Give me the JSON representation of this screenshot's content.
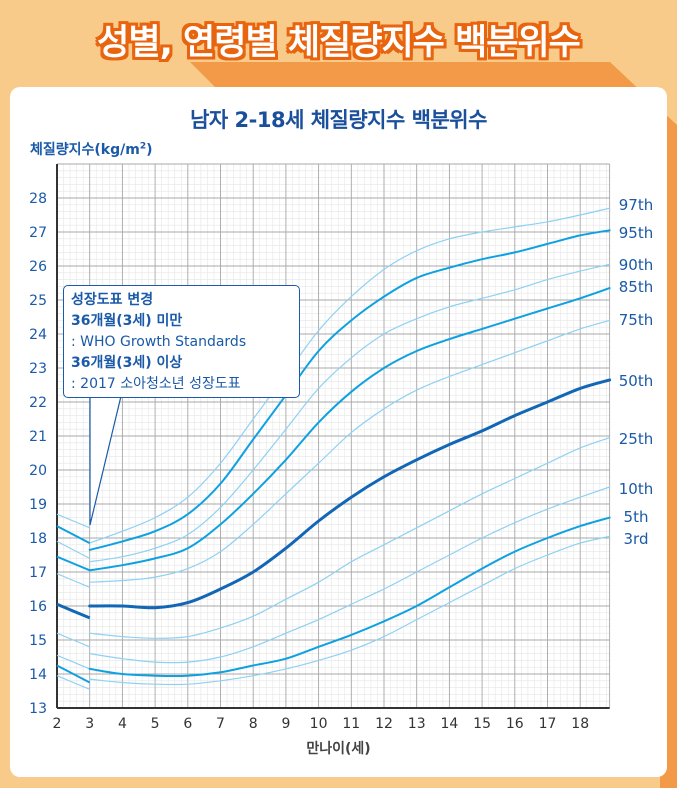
{
  "header": {
    "title": "성별, 연령별 체질량지수 백분위수"
  },
  "colors": {
    "background": "#f9cb8a",
    "band": "#f29a48",
    "light": "#8ed1f2",
    "medium": "#0ea1e2",
    "dark": "#1266b6",
    "text": "#1a5aa8"
  },
  "callout": {
    "heading": "성장도표 변경",
    "line1_bold": "36개월(3세) 미만",
    "line1": ": WHO Growth Standards",
    "line2_bold": "36개월(3세) 이상",
    "line2": ": 2017 소아청소년 성장도표"
  },
  "chart_data": {
    "type": "line",
    "title": "남자 2-18세 체질량지수 백분위수",
    "ylabel": "체질량지수(kg/m",
    "ylabel_sup": "2",
    "ylabel_close": ")",
    "xlabel": "만나이(세)",
    "xlim": [
      2,
      18.9
    ],
    "ylim": [
      13,
      29
    ],
    "grid": true,
    "x_ticks": [
      2,
      3,
      4,
      5,
      6,
      7,
      8,
      9,
      10,
      11,
      12,
      13,
      14,
      15,
      16,
      17,
      18
    ],
    "y_ticks": [
      13,
      14,
      15,
      16,
      17,
      18,
      19,
      20,
      21,
      22,
      23,
      24,
      25,
      26,
      27,
      28
    ],
    "who_x": [
      2,
      3
    ],
    "x": [
      3,
      4,
      5,
      6,
      7,
      8,
      9,
      10,
      11,
      12,
      13,
      14,
      15,
      16,
      17,
      18,
      18.9
    ],
    "series": [
      {
        "name": "97th",
        "style": "light",
        "who": [
          18.7,
          18.3
        ],
        "values": [
          17.85,
          18.2,
          18.6,
          19.2,
          20.2,
          21.5,
          22.8,
          24.1,
          25.1,
          25.9,
          26.45,
          26.8,
          27.0,
          27.15,
          27.3,
          27.5,
          27.7
        ]
      },
      {
        "name": "95th",
        "style": "medium",
        "who": [
          18.35,
          17.85
        ],
        "values": [
          17.65,
          17.9,
          18.2,
          18.7,
          19.6,
          20.9,
          22.2,
          23.5,
          24.4,
          25.1,
          25.65,
          25.95,
          26.2,
          26.4,
          26.65,
          26.9,
          27.05
        ]
      },
      {
        "name": "90th",
        "style": "light",
        "who": [
          17.9,
          17.4
        ],
        "values": [
          17.3,
          17.45,
          17.7,
          18.1,
          18.9,
          20.0,
          21.2,
          22.4,
          23.3,
          24.0,
          24.45,
          24.8,
          25.05,
          25.3,
          25.6,
          25.85,
          26.05
        ]
      },
      {
        "name": "85th",
        "style": "medium",
        "who": [
          17.45,
          17.05
        ],
        "values": [
          17.05,
          17.2,
          17.4,
          17.7,
          18.4,
          19.3,
          20.3,
          21.4,
          22.3,
          23.0,
          23.5,
          23.85,
          24.15,
          24.45,
          24.75,
          25.05,
          25.35
        ]
      },
      {
        "name": "75th",
        "style": "light",
        "who": [
          16.95,
          16.55
        ],
        "values": [
          16.7,
          16.75,
          16.85,
          17.1,
          17.6,
          18.4,
          19.3,
          20.2,
          21.1,
          21.8,
          22.35,
          22.75,
          23.1,
          23.45,
          23.8,
          24.15,
          24.4
        ]
      },
      {
        "name": "50th",
        "style": "dark",
        "who": [
          16.05,
          15.65
        ],
        "values": [
          16.0,
          16.0,
          15.95,
          16.1,
          16.5,
          17.0,
          17.7,
          18.5,
          19.2,
          19.8,
          20.3,
          20.75,
          21.15,
          21.6,
          22.0,
          22.4,
          22.65
        ]
      },
      {
        "name": "25th",
        "style": "light",
        "who": [
          15.2,
          14.8
        ],
        "values": [
          15.2,
          15.1,
          15.05,
          15.1,
          15.35,
          15.7,
          16.2,
          16.7,
          17.3,
          17.8,
          18.3,
          18.8,
          19.3,
          19.75,
          20.2,
          20.65,
          20.95
        ]
      },
      {
        "name": "10th",
        "style": "light",
        "who": [
          14.55,
          14.15
        ],
        "values": [
          14.6,
          14.45,
          14.35,
          14.35,
          14.5,
          14.8,
          15.2,
          15.6,
          16.05,
          16.5,
          17.0,
          17.5,
          18.0,
          18.45,
          18.85,
          19.2,
          19.5
        ]
      },
      {
        "name": "5th",
        "style": "medium",
        "who": [
          14.25,
          13.75
        ],
        "values": [
          14.15,
          14.0,
          13.95,
          13.95,
          14.05,
          14.25,
          14.45,
          14.8,
          15.15,
          15.55,
          16.0,
          16.55,
          17.1,
          17.6,
          18.0,
          18.35,
          18.6
        ]
      },
      {
        "name": "3rd",
        "style": "light",
        "who": [
          13.95,
          13.55
        ],
        "values": [
          13.85,
          13.75,
          13.7,
          13.7,
          13.8,
          13.95,
          14.15,
          14.4,
          14.7,
          15.1,
          15.6,
          16.1,
          16.6,
          17.1,
          17.5,
          17.85,
          18.05
        ]
      }
    ]
  }
}
